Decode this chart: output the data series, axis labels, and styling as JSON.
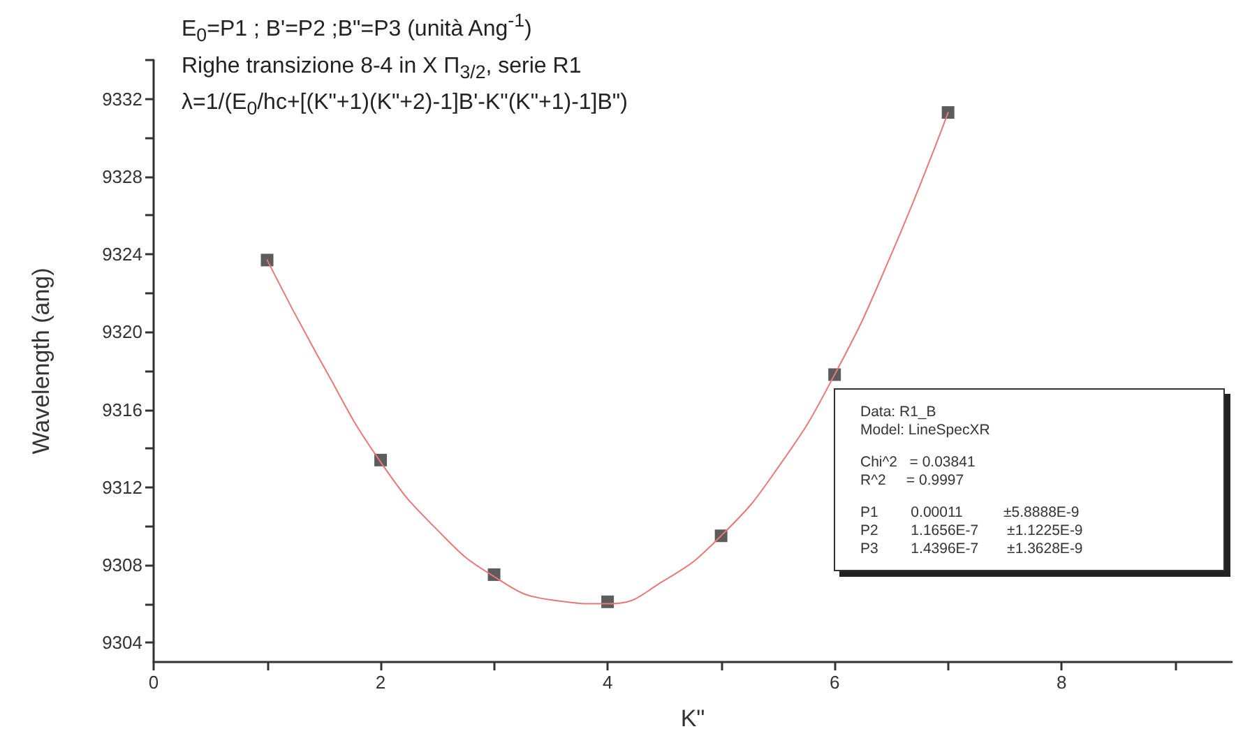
{
  "chart_data": {
    "type": "scatter",
    "title": "E$_{0}$=P1 ; B'=P2 ;B\"=P3 (unità Ang$^{-1}$)",
    "subtitle": "Righe transizione 8-4 in X Π$_{3/2}$, serie R1",
    "xlabel": "K\"",
    "ylabel": "Wavelength (ang)",
    "annotations": [
      "λ=1/(E$_{0}$/hc+[(K\"+1)(K\"+2)-1]B'-K\"(K\"+1)-1]B\")",
      "Data: R1_B",
      "Model: LineSpecXR",
      "Chi^2   = 0.03841",
      "R^2     = 0.9997",
      "P1        0.00011          ±5.8888E-9",
      "P2        1.1656E-7       ±1.1225E-9",
      "P3        1.4396E-7       ±1.3628E-9"
    ],
    "series": [
      {
        "type": "line",
        "color": "#e87878",
        "marker": "none",
        "x": [
          1,
          1.5,
          2,
          2.5,
          3,
          3.5,
          4,
          4.5,
          5,
          5.5,
          6,
          6.5,
          7
        ],
        "values": [
          9323.7,
          9318.2,
          9313.3,
          9309.8,
          9307.4,
          9306.2,
          9306.0,
          9307.2,
          9309.5,
          9313.0,
          9317.8,
          9324.0,
          9331.3
        ]
      },
      {
        "color": "#333333",
        "marker": "square",
        "x": [
          1,
          2,
          3,
          4,
          5,
          6,
          7
        ],
        "values": [
          9323.7,
          9313.4,
          9307.5,
          9306.1,
          9309.5,
          9317.8,
          9331.3
        ]
      }
    ],
    "xlim": [
      0,
      9.5
    ],
    "xticks": [
      0,
      {
        "value": 1,
        "label": null
      },
      2,
      {
        "value": 3,
        "label": null
      },
      4,
      {
        "value": 5,
        "label": null
      },
      6,
      {
        "value": 7,
        "label": null
      },
      8,
      {
        "value": 9,
        "label": null
      }
    ],
    "ylim": [
      9303,
      9334
    ],
    "yticks": [
      9304,
      {
        "value": 9306,
        "label": null
      },
      9308,
      {
        "value": 9310,
        "label": null
      },
      9312,
      {
        "value": 9314,
        "label": null
      },
      9316,
      {
        "value": 9318,
        "label": null
      },
      9320,
      {
        "value": 9322,
        "label": null
      },
      9324,
      {
        "value": 9326,
        "label": null
      },
      9328,
      {
        "value": 9330,
        "label": null
      },
      9332,
      {
        "value": 9334,
        "label": null
      }
    ],
    "grid": false
  }
}
